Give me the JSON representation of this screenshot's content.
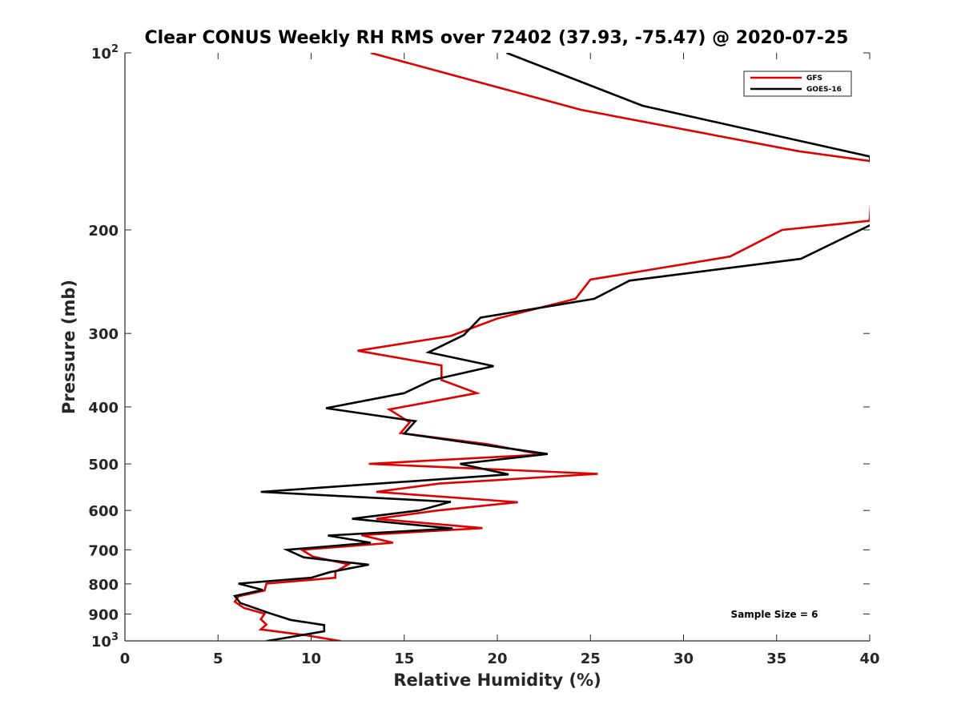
{
  "chart_data": {
    "type": "line",
    "title": "Clear CONUS Weekly RH RMS over 72402 (37.93, -75.47) @ 2020-07-25",
    "xlabel": "Relative Humidity (%)",
    "ylabel": "Pressure (mb)",
    "xlim": [
      0,
      40
    ],
    "ylim": [
      100,
      1000
    ],
    "yscale": "log",
    "y_reversed": true,
    "xticks": [
      0,
      5,
      10,
      15,
      20,
      25,
      30,
      35,
      40
    ],
    "yticks": [
      {
        "value": 100,
        "label": "10",
        "exp": "2"
      },
      {
        "value": 200,
        "label": "200"
      },
      {
        "value": 300,
        "label": "300"
      },
      {
        "value": 400,
        "label": "400"
      },
      {
        "value": 500,
        "label": "500"
      },
      {
        "value": 600,
        "label": "600"
      },
      {
        "value": 700,
        "label": "700"
      },
      {
        "value": 800,
        "label": "800"
      },
      {
        "value": 900,
        "label": "900"
      },
      {
        "value": 1000,
        "label": "10",
        "exp": "3"
      }
    ],
    "legend_position": "top-right",
    "annotation": "Sample Size = 6",
    "series": [
      {
        "name": "GFS",
        "color": "#e00000",
        "points": [
          [
            13.2,
            100
          ],
          [
            24.5,
            125
          ],
          [
            36.2,
            147
          ],
          [
            40.2,
            153
          ],
          [
            40.0,
            193
          ],
          [
            35.3,
            200
          ],
          [
            32.5,
            222
          ],
          [
            25.0,
            243
          ],
          [
            24.2,
            262
          ],
          [
            20.0,
            283
          ],
          [
            17.5,
            303
          ],
          [
            12.5,
            321
          ],
          [
            17.0,
            340
          ],
          [
            17.0,
            360
          ],
          [
            18.9,
            379
          ],
          [
            14.2,
            404
          ],
          [
            15.3,
            425
          ],
          [
            14.8,
            443
          ],
          [
            19.5,
            463
          ],
          [
            22.4,
            482
          ],
          [
            13.1,
            500
          ],
          [
            25.4,
            520
          ],
          [
            16.9,
            540
          ],
          [
            13.5,
            558
          ],
          [
            21.1,
            581
          ],
          [
            16.8,
            600
          ],
          [
            13.5,
            620
          ],
          [
            19.2,
            643
          ],
          [
            12.7,
            661
          ],
          [
            14.4,
            681
          ],
          [
            9.5,
            700
          ],
          [
            10.1,
            719
          ],
          [
            12.0,
            741
          ],
          [
            11.3,
            763
          ],
          [
            11.3,
            781
          ],
          [
            7.6,
            799
          ],
          [
            7.5,
            821
          ],
          [
            6.1,
            840
          ],
          [
            5.9,
            858
          ],
          [
            6.4,
            879
          ],
          [
            7.5,
            899
          ],
          [
            7.3,
            919
          ],
          [
            7.6,
            938
          ],
          [
            7.3,
            956
          ],
          [
            9.7,
            978
          ],
          [
            11.6,
            1001
          ]
        ]
      },
      {
        "name": "GOES-16",
        "color": "#000000",
        "points": [
          [
            20.5,
            100
          ],
          [
            27.8,
            123
          ],
          [
            40.0,
            150
          ],
          [
            40.5,
            193
          ],
          [
            39.5,
            200
          ],
          [
            36.3,
            224
          ],
          [
            27.1,
            244
          ],
          [
            25.2,
            262
          ],
          [
            19.1,
            282
          ],
          [
            18.2,
            302
          ],
          [
            16.3,
            323
          ],
          [
            19.8,
            341
          ],
          [
            16.5,
            360
          ],
          [
            15.0,
            379
          ],
          [
            10.8,
            402
          ],
          [
            15.6,
            423
          ],
          [
            15.0,
            444
          ],
          [
            22.7,
            481
          ],
          [
            18.0,
            500
          ],
          [
            20.6,
            521
          ],
          [
            7.3,
            558
          ],
          [
            17.5,
            580
          ],
          [
            15.8,
            600
          ],
          [
            12.2,
            620
          ],
          [
            17.6,
            644
          ],
          [
            10.9,
            662
          ],
          [
            13.2,
            681
          ],
          [
            8.7,
            700
          ],
          [
            9.6,
            721
          ],
          [
            13.1,
            742
          ],
          [
            11.0,
            764
          ],
          [
            10.0,
            781
          ],
          [
            6.1,
            799
          ],
          [
            7.4,
            819
          ],
          [
            5.9,
            839
          ],
          [
            6.2,
            862
          ],
          [
            7.8,
            898
          ],
          [
            8.9,
            921
          ],
          [
            10.7,
            940
          ],
          [
            10.7,
            963
          ],
          [
            7.6,
            1001
          ]
        ]
      }
    ]
  }
}
